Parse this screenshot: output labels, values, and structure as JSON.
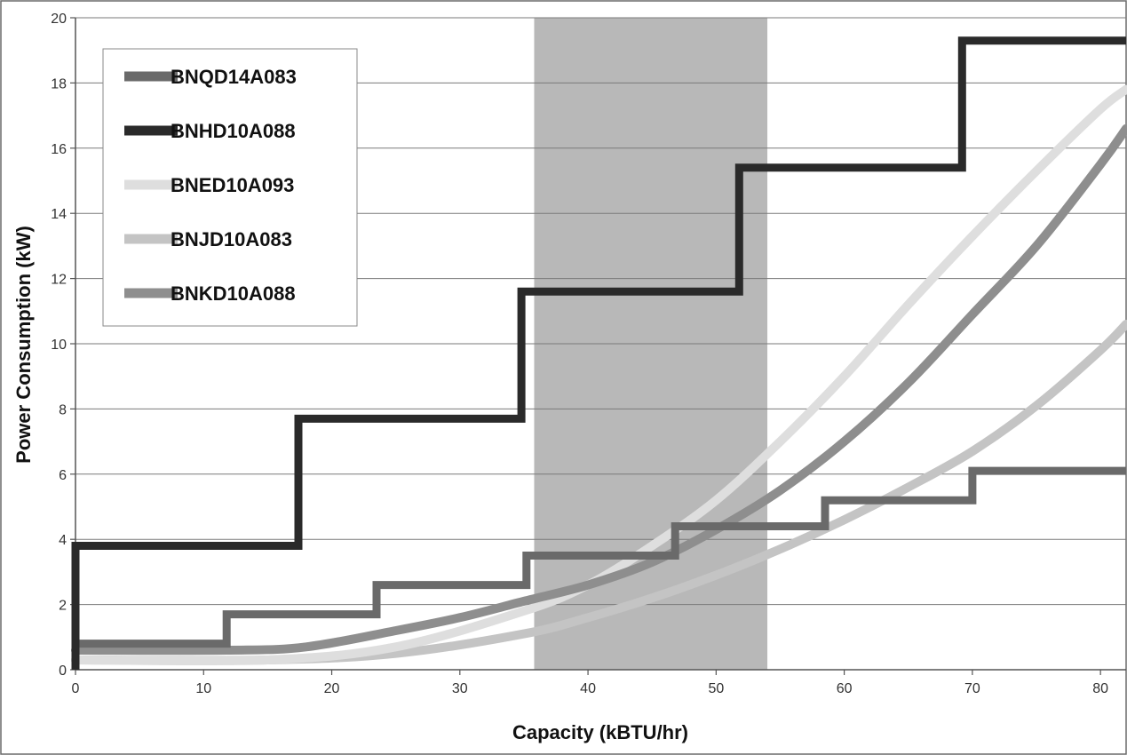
{
  "chart_data": {
    "type": "line",
    "title": "",
    "xlabel": "Capacity (kBTU/hr)",
    "ylabel": "Power Consumption (kW)",
    "xlim": [
      0,
      82
    ],
    "ylim": [
      0,
      20
    ],
    "xticks": [
      0,
      10,
      20,
      30,
      40,
      50,
      60,
      70,
      80
    ],
    "yticks": [
      0,
      2,
      4,
      6,
      8,
      10,
      12,
      14,
      16,
      18,
      20
    ],
    "grid": "horizontal",
    "legend_position": "top-left",
    "highlight_band": {
      "x_start": 35.8,
      "x_end": 54,
      "color": "#b8b8b8"
    },
    "series": [
      {
        "name": "BNQD14A083",
        "color": "#6a6a6a",
        "line": "step",
        "points": [
          [
            0,
            0.8
          ],
          [
            11.8,
            0.8
          ],
          [
            11.8,
            1.7
          ],
          [
            23.5,
            1.7
          ],
          [
            23.5,
            2.6
          ],
          [
            35.2,
            2.6
          ],
          [
            35.2,
            3.5
          ],
          [
            46.8,
            3.5
          ],
          [
            46.8,
            4.4
          ],
          [
            58.5,
            4.4
          ],
          [
            58.5,
            5.2
          ],
          [
            70,
            5.2
          ],
          [
            70,
            6.1
          ],
          [
            82,
            6.1
          ]
        ]
      },
      {
        "name": "BNHD10A088",
        "color": "#2a2a2a",
        "line": "step",
        "points": [
          [
            0,
            0
          ],
          [
            0,
            3.8
          ],
          [
            17.4,
            3.8
          ],
          [
            17.4,
            7.7
          ],
          [
            34.8,
            7.7
          ],
          [
            34.8,
            11.6
          ],
          [
            51.8,
            11.6
          ],
          [
            51.8,
            15.4
          ],
          [
            69.2,
            15.4
          ],
          [
            69.2,
            19.3
          ],
          [
            82,
            19.3
          ]
        ]
      },
      {
        "name": "BNED10A093",
        "color": "#dedede",
        "line": "curve",
        "points": [
          [
            0,
            0.3
          ],
          [
            15,
            0.3
          ],
          [
            25,
            0.7
          ],
          [
            35,
            1.8
          ],
          [
            40,
            2.6
          ],
          [
            45,
            3.8
          ],
          [
            50,
            5.2
          ],
          [
            55,
            7.0
          ],
          [
            60,
            9.0
          ],
          [
            65,
            11.2
          ],
          [
            70,
            13.3
          ],
          [
            75,
            15.3
          ],
          [
            80,
            17.2
          ],
          [
            82,
            17.8
          ]
        ]
      },
      {
        "name": "BNJD10A083",
        "color": "#c4c4c4",
        "line": "curve",
        "points": [
          [
            0,
            0.3
          ],
          [
            15,
            0.3
          ],
          [
            25,
            0.5
          ],
          [
            35,
            1.1
          ],
          [
            40,
            1.6
          ],
          [
            45,
            2.2
          ],
          [
            50,
            2.9
          ],
          [
            55,
            3.7
          ],
          [
            60,
            4.6
          ],
          [
            65,
            5.6
          ],
          [
            70,
            6.7
          ],
          [
            75,
            8.1
          ],
          [
            80,
            9.8
          ],
          [
            82,
            10.6
          ]
        ]
      },
      {
        "name": "BNKD10A088",
        "color": "#8e8e8e",
        "line": "curve",
        "points": [
          [
            0,
            0.6
          ],
          [
            12,
            0.6
          ],
          [
            18,
            0.7
          ],
          [
            25,
            1.2
          ],
          [
            30,
            1.6
          ],
          [
            35,
            2.1
          ],
          [
            40,
            2.6
          ],
          [
            45,
            3.3
          ],
          [
            50,
            4.3
          ],
          [
            55,
            5.5
          ],
          [
            60,
            7.0
          ],
          [
            65,
            8.8
          ],
          [
            70,
            10.9
          ],
          [
            75,
            13.0
          ],
          [
            80,
            15.5
          ],
          [
            82,
            16.6
          ]
        ]
      }
    ]
  }
}
